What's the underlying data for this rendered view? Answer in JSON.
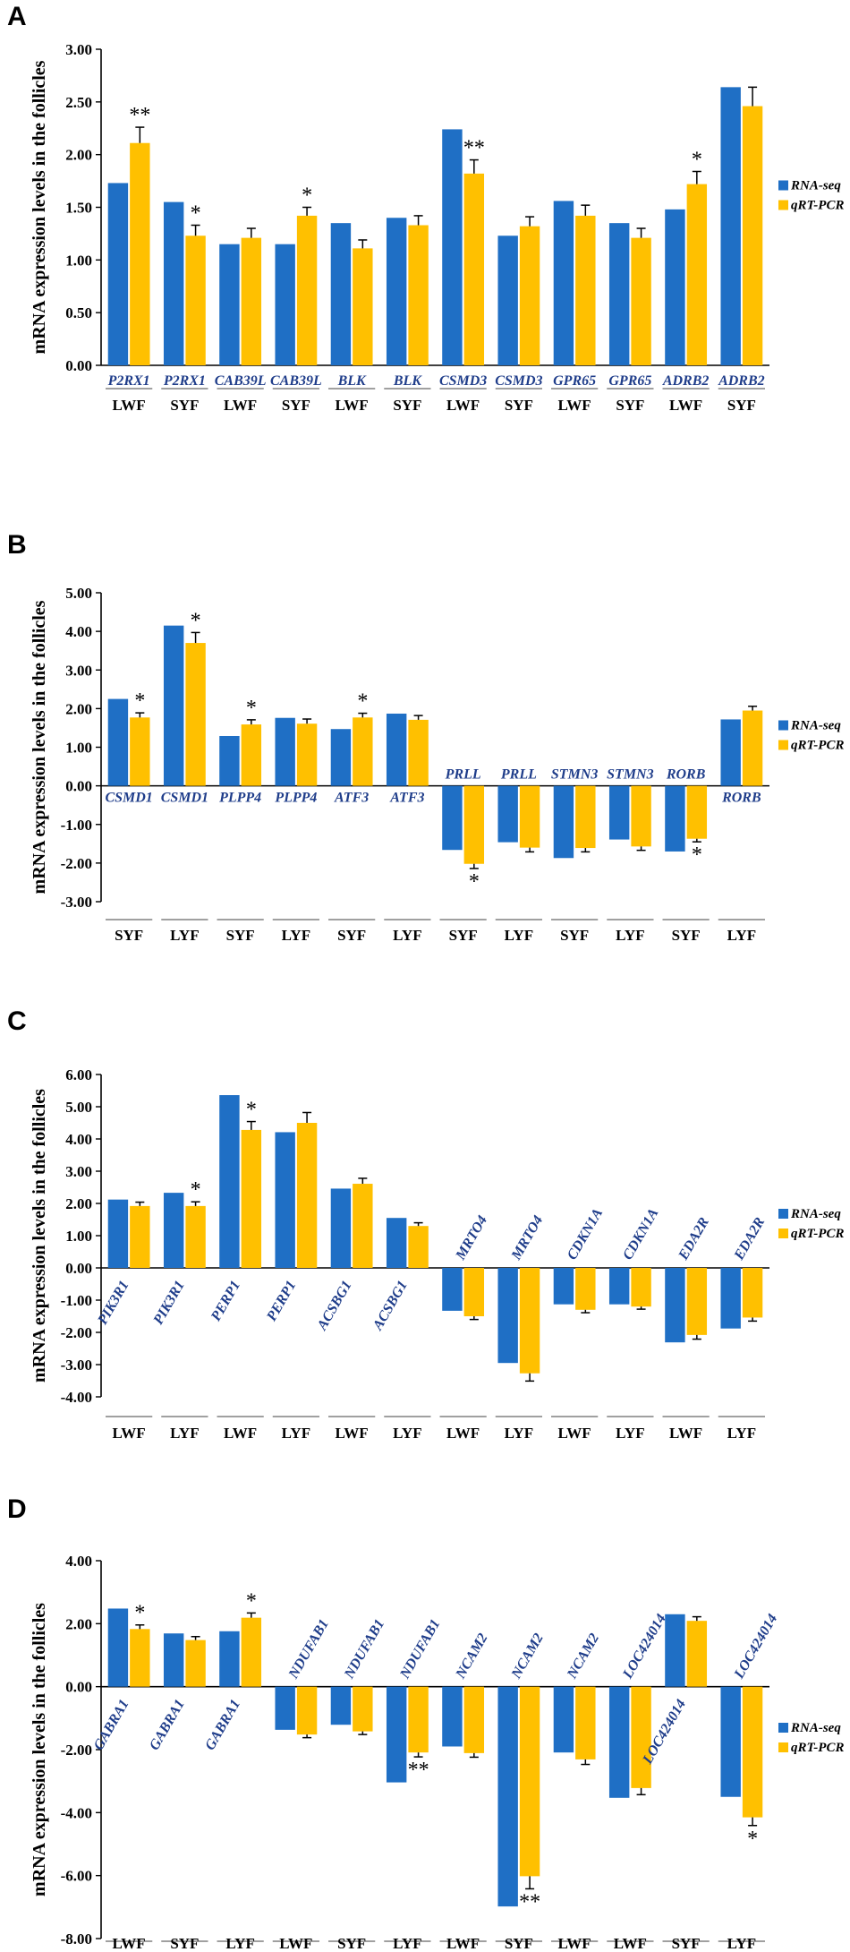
{
  "colors": {
    "rna_seq": "#1F6FC5",
    "qrt_pcr": "#FFC000",
    "axis": "#000000",
    "gene_text": "#1F3D8A",
    "separator": "#A0A0A0"
  },
  "chart_data": [
    {
      "panel": "A",
      "type": "bar",
      "ylabel": "mRNA expression levels in the follicles",
      "ylim": [
        0,
        3
      ],
      "yticks": [
        "0.00",
        "0.50",
        "1.00",
        "1.50",
        "2.00",
        "2.50",
        "3.00"
      ],
      "ytick_values": [
        0,
        0.5,
        1,
        1.5,
        2,
        2.5,
        3
      ],
      "legend_position": "right",
      "categories": [
        {
          "gene": "P2RX1",
          "tissue": "LWF",
          "rna_seq": 1.73,
          "qrt_pcr": 2.11,
          "error": 0.15,
          "sig": "**"
        },
        {
          "gene": "P2RX1",
          "tissue": "SYF",
          "rna_seq": 1.55,
          "qrt_pcr": 1.23,
          "error": 0.1,
          "sig": "*"
        },
        {
          "gene": "CAB39L",
          "tissue": "LWF",
          "rna_seq": 1.15,
          "qrt_pcr": 1.21,
          "error": 0.09,
          "sig": ""
        },
        {
          "gene": "CAB39L",
          "tissue": "SYF",
          "rna_seq": 1.15,
          "qrt_pcr": 1.42,
          "error": 0.08,
          "sig": "*"
        },
        {
          "gene": "BLK",
          "tissue": "LWF",
          "rna_seq": 1.35,
          "qrt_pcr": 1.11,
          "error": 0.08,
          "sig": ""
        },
        {
          "gene": "BLK",
          "tissue": "SYF",
          "rna_seq": 1.4,
          "qrt_pcr": 1.33,
          "error": 0.09,
          "sig": ""
        },
        {
          "gene": "CSMD3",
          "tissue": "LWF",
          "rna_seq": 2.24,
          "qrt_pcr": 1.82,
          "error": 0.13,
          "sig": "**"
        },
        {
          "gene": "CSMD3",
          "tissue": "SYF",
          "rna_seq": 1.23,
          "qrt_pcr": 1.32,
          "error": 0.09,
          "sig": ""
        },
        {
          "gene": "GPR65",
          "tissue": "LWF",
          "rna_seq": 1.56,
          "qrt_pcr": 1.42,
          "error": 0.1,
          "sig": ""
        },
        {
          "gene": "GPR65",
          "tissue": "SYF",
          "rna_seq": 1.35,
          "qrt_pcr": 1.21,
          "error": 0.09,
          "sig": ""
        },
        {
          "gene": "ADRB2",
          "tissue": "LWF",
          "rna_seq": 1.48,
          "qrt_pcr": 1.72,
          "error": 0.12,
          "sig": "*"
        },
        {
          "gene": "ADRB2",
          "tissue": "SYF",
          "rna_seq": 2.64,
          "qrt_pcr": 2.46,
          "error": 0.18,
          "sig": ""
        }
      ],
      "legend": [
        "RNA-seq",
        "qRT-PCR"
      ]
    },
    {
      "panel": "B",
      "type": "bar",
      "ylabel": "mRNA expression levels in the follicles",
      "ylim": [
        -3,
        5
      ],
      "yticks": [
        "-3.00",
        "-2.00",
        "-1.00",
        "0.00",
        "1.00",
        "2.00",
        "3.00",
        "4.00",
        "5.00"
      ],
      "ytick_values": [
        -3,
        -2,
        -1,
        0,
        1,
        2,
        3,
        4,
        5
      ],
      "legend_position": "right",
      "categories": [
        {
          "gene": "CSMD1",
          "tissue": "SYF",
          "rna_seq": 2.25,
          "qrt_pcr": 1.77,
          "error": 0.12,
          "sig": "*"
        },
        {
          "gene": "CSMD1",
          "tissue": "LYF",
          "rna_seq": 4.15,
          "qrt_pcr": 3.7,
          "error": 0.27,
          "sig": "*"
        },
        {
          "gene": "PLPP4",
          "tissue": "SYF",
          "rna_seq": 1.29,
          "qrt_pcr": 1.59,
          "error": 0.12,
          "sig": "*"
        },
        {
          "gene": "PLPP4",
          "tissue": "LYF",
          "rna_seq": 1.76,
          "qrt_pcr": 1.61,
          "error": 0.12,
          "sig": ""
        },
        {
          "gene": "ATF3",
          "tissue": "SYF",
          "rna_seq": 1.47,
          "qrt_pcr": 1.77,
          "error": 0.11,
          "sig": "*"
        },
        {
          "gene": "ATF3",
          "tissue": "LYF",
          "rna_seq": 1.87,
          "qrt_pcr": 1.71,
          "error": 0.11,
          "sig": ""
        },
        {
          "gene": "PRLL",
          "tissue": "SYF",
          "rna_seq": -1.66,
          "qrt_pcr": -2.02,
          "error": 0.12,
          "sig": "*"
        },
        {
          "gene": "PRLL",
          "tissue": "LYF",
          "rna_seq": -1.46,
          "qrt_pcr": -1.6,
          "error": 0.11,
          "sig": ""
        },
        {
          "gene": "STMN3",
          "tissue": "SYF",
          "rna_seq": -1.87,
          "qrt_pcr": -1.61,
          "error": 0.1,
          "sig": ""
        },
        {
          "gene": "STMN3",
          "tissue": "LYF",
          "rna_seq": -1.39,
          "qrt_pcr": -1.57,
          "error": 0.1,
          "sig": ""
        },
        {
          "gene": "RORB",
          "tissue": "SYF",
          "rna_seq": -1.7,
          "qrt_pcr": -1.37,
          "error": 0.08,
          "sig": "*"
        },
        {
          "gene": "RORB",
          "tissue": "LYF",
          "rna_seq": 1.72,
          "qrt_pcr": 1.95,
          "error": 0.11,
          "sig": ""
        }
      ],
      "legend": [
        "RNA-seq",
        "qRT-PCR"
      ]
    },
    {
      "panel": "C",
      "type": "bar",
      "ylabel": "mRNA expression levels in the follicles",
      "ylim": [
        -4,
        6
      ],
      "yticks": [
        "-4.00",
        "-3.00",
        "-2.00",
        "-1.00",
        "0.00",
        "1.00",
        "2.00",
        "3.00",
        "4.00",
        "5.00",
        "6.00"
      ],
      "ytick_values": [
        -4,
        -3,
        -2,
        -1,
        0,
        1,
        2,
        3,
        4,
        5,
        6
      ],
      "legend_position": "right",
      "categories": [
        {
          "gene": "PIK3R1",
          "tissue": "LWF",
          "rna_seq": 2.12,
          "qrt_pcr": 1.92,
          "error": 0.12,
          "sig": ""
        },
        {
          "gene": "PIK3R1",
          "tissue": "LYF",
          "rna_seq": 2.33,
          "qrt_pcr": 1.92,
          "error": 0.13,
          "sig": "*"
        },
        {
          "gene": "PERP1",
          "tissue": "LWF",
          "rna_seq": 5.36,
          "qrt_pcr": 4.28,
          "error": 0.26,
          "sig": "*"
        },
        {
          "gene": "PERP1",
          "tissue": "LYF",
          "rna_seq": 4.21,
          "qrt_pcr": 4.5,
          "error": 0.32,
          "sig": ""
        },
        {
          "gene": "ACSBG1",
          "tissue": "LWF",
          "rna_seq": 2.46,
          "qrt_pcr": 2.61,
          "error": 0.17,
          "sig": ""
        },
        {
          "gene": "ACSBG1",
          "tissue": "LYF",
          "rna_seq": 1.55,
          "qrt_pcr": 1.3,
          "error": 0.1,
          "sig": ""
        },
        {
          "gene": "MRTO4",
          "tissue": "LWF",
          "rna_seq": -1.33,
          "qrt_pcr": -1.5,
          "error": 0.1,
          "sig": ""
        },
        {
          "gene": "MRTO4",
          "tissue": "LYF",
          "rna_seq": -2.95,
          "qrt_pcr": -3.27,
          "error": 0.24,
          "sig": ""
        },
        {
          "gene": "CDKN1A",
          "tissue": "LWF",
          "rna_seq": -1.13,
          "qrt_pcr": -1.3,
          "error": 0.09,
          "sig": ""
        },
        {
          "gene": "CDKN1A",
          "tissue": "LYF",
          "rna_seq": -1.13,
          "qrt_pcr": -1.2,
          "error": 0.08,
          "sig": ""
        },
        {
          "gene": "EDA2R",
          "tissue": "LWF",
          "rna_seq": -2.31,
          "qrt_pcr": -2.08,
          "error": 0.13,
          "sig": ""
        },
        {
          "gene": "EDA2R",
          "tissue": "LYF",
          "rna_seq": -1.88,
          "qrt_pcr": -1.54,
          "error": 0.11,
          "sig": ""
        }
      ],
      "legend": [
        "RNA-seq",
        "qRT-PCR"
      ]
    },
    {
      "panel": "D",
      "type": "bar",
      "ylabel": "mRNA expression levels in the follicles",
      "ylim": [
        -8,
        4
      ],
      "yticks": [
        "-8.00",
        "-6.00",
        "-4.00",
        "-2.00",
        "0.00",
        "2.00",
        "4.00"
      ],
      "ytick_values": [
        -8,
        -6,
        -4,
        -2,
        0,
        2,
        4
      ],
      "legend_position": "right",
      "categories": [
        {
          "gene": "GABRA1",
          "tissue": "LWF",
          "rna_seq": 2.48,
          "qrt_pcr": 1.83,
          "error": 0.13,
          "sig": "*"
        },
        {
          "gene": "GABRA1",
          "tissue": "SYF",
          "rna_seq": 1.69,
          "qrt_pcr": 1.48,
          "error": 0.11,
          "sig": ""
        },
        {
          "gene": "GABRA1",
          "tissue": "LYF",
          "rna_seq": 1.76,
          "qrt_pcr": 2.19,
          "error": 0.15,
          "sig": "*"
        },
        {
          "gene": "NDUFAB1",
          "tissue": "LWF",
          "rna_seq": -1.37,
          "qrt_pcr": -1.52,
          "error": 0.1,
          "sig": ""
        },
        {
          "gene": "NDUFAB1",
          "tissue": "SYF",
          "rna_seq": -1.21,
          "qrt_pcr": -1.42,
          "error": 0.1,
          "sig": ""
        },
        {
          "gene": "NDUFAB1",
          "tissue": "LYF",
          "rna_seq": -3.04,
          "qrt_pcr": -2.09,
          "error": 0.14,
          "sig": "**"
        },
        {
          "gene": "NCAM2",
          "tissue": "LWF",
          "rna_seq": -1.9,
          "qrt_pcr": -2.11,
          "error": 0.13,
          "sig": ""
        },
        {
          "gene": "NCAM2",
          "tissue": "SYF",
          "rna_seq": -6.98,
          "qrt_pcr": -6.02,
          "error": 0.4,
          "sig": "**"
        },
        {
          "gene": "NCAM2",
          "tissue": "LWF",
          "rna_seq": -2.09,
          "qrt_pcr": -2.31,
          "error": 0.16,
          "sig": ""
        },
        {
          "gene": "LOC424014",
          "tissue": "LWF",
          "rna_seq": -3.53,
          "qrt_pcr": -3.22,
          "error": 0.21,
          "sig": ""
        },
        {
          "gene": "LOC424014",
          "tissue": "SYF",
          "rna_seq": 2.3,
          "qrt_pcr": 2.09,
          "error": 0.13,
          "sig": ""
        },
        {
          "gene": "LOC424014",
          "tissue": "LYF",
          "rna_seq": -3.5,
          "qrt_pcr": -4.15,
          "error": 0.26,
          "sig": "*"
        }
      ],
      "legend": [
        "RNA-seq",
        "qRT-PCR"
      ]
    }
  ]
}
